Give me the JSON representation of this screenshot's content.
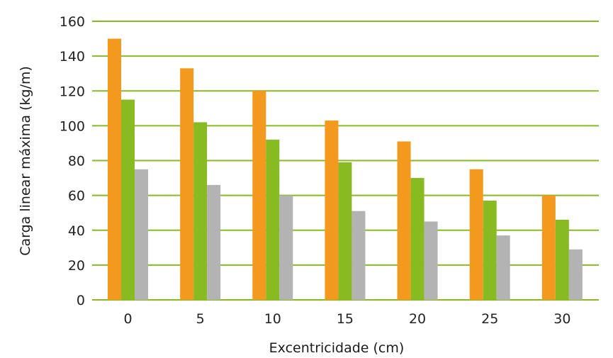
{
  "chart_data": {
    "type": "bar",
    "title": "",
    "xlabel": "Excentricidade (cm)",
    "ylabel": "Carga linear máxima (kg/m)",
    "categories": [
      "0",
      "5",
      "10",
      "15",
      "20",
      "25",
      "30"
    ],
    "series": [
      {
        "values": [
          150,
          133,
          120,
          103,
          91,
          75,
          60
        ],
        "color": "#f39a1e"
      },
      {
        "values": [
          115,
          102,
          92,
          79,
          70,
          57,
          46
        ],
        "color": "#88bb22"
      },
      {
        "values": [
          75,
          66,
          60,
          51,
          45,
          37,
          29
        ],
        "color": "#b3b3b3"
      }
    ],
    "ylim": [
      0,
      160
    ],
    "yticks": [
      0,
      20,
      40,
      60,
      80,
      100,
      120,
      140,
      160
    ],
    "grid": true,
    "grid_color": "#88bb22",
    "legend": "none"
  }
}
